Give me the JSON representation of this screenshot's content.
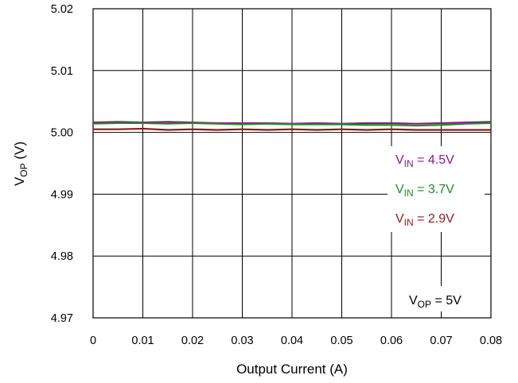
{
  "chart_data": {
    "type": "line",
    "xlabel": {
      "main": "Output Current (A)"
    },
    "ylabel": {
      "main": "V",
      "sub": "OP",
      "suffix": " (V)"
    },
    "x_ticks": [
      "0",
      "0.01",
      "0.02",
      "0.03",
      "0.04",
      "0.05",
      "0.06",
      "0.07",
      "0.08"
    ],
    "y_ticks": [
      "5.02",
      "5.01",
      "5.00",
      "4.99",
      "4.98",
      "4.97"
    ],
    "xlim": [
      0,
      0.08
    ],
    "ylim": [
      4.97,
      5.02
    ],
    "grid": true,
    "legend_placement": "right",
    "series": [
      {
        "name": {
          "main": "V",
          "sub": "IN",
          "rest": " = 4.5V"
        },
        "color": "#8B1A8B",
        "x": [
          0,
          0.005,
          0.01,
          0.015,
          0.02,
          0.025,
          0.03,
          0.035,
          0.04,
          0.045,
          0.05,
          0.055,
          0.06,
          0.065,
          0.07,
          0.075,
          0.08
        ],
        "values": [
          5.0016,
          5.0017,
          5.0016,
          5.0017,
          5.0016,
          5.0015,
          5.0015,
          5.0015,
          5.0014,
          5.0015,
          5.0014,
          5.0015,
          5.0015,
          5.0014,
          5.0015,
          5.0016,
          5.0017
        ]
      },
      {
        "name": {
          "main": "V",
          "sub": "IN",
          "rest": " = 3.7V"
        },
        "color": "#228B22",
        "x": [
          0,
          0.005,
          0.01,
          0.015,
          0.02,
          0.025,
          0.03,
          0.035,
          0.04,
          0.045,
          0.05,
          0.055,
          0.06,
          0.065,
          0.07,
          0.075,
          0.08
        ],
        "values": [
          5.0014,
          5.0015,
          5.0015,
          5.0014,
          5.0015,
          5.0014,
          5.0013,
          5.0014,
          5.0013,
          5.0013,
          5.0013,
          5.0012,
          5.0012,
          5.0011,
          5.0012,
          5.0014,
          5.0015
        ]
      },
      {
        "name": {
          "main": "V",
          "sub": "IN",
          "rest": " = 2.9V"
        },
        "color": "#8B1A1A",
        "x": [
          0,
          0.005,
          0.01,
          0.015,
          0.02,
          0.025,
          0.03,
          0.035,
          0.04,
          0.045,
          0.05,
          0.055,
          0.06,
          0.065,
          0.07,
          0.075,
          0.08
        ],
        "values": [
          5.0005,
          5.0005,
          5.0006,
          5.0004,
          5.0005,
          5.0004,
          5.0005,
          5.0004,
          5.0005,
          5.0004,
          5.0005,
          5.0004,
          5.0005,
          5.0004,
          5.0004,
          5.0004,
          5.0004
        ]
      }
    ],
    "annotation": {
      "main": "V",
      "sub": "OP",
      "rest": " = 5V"
    }
  }
}
